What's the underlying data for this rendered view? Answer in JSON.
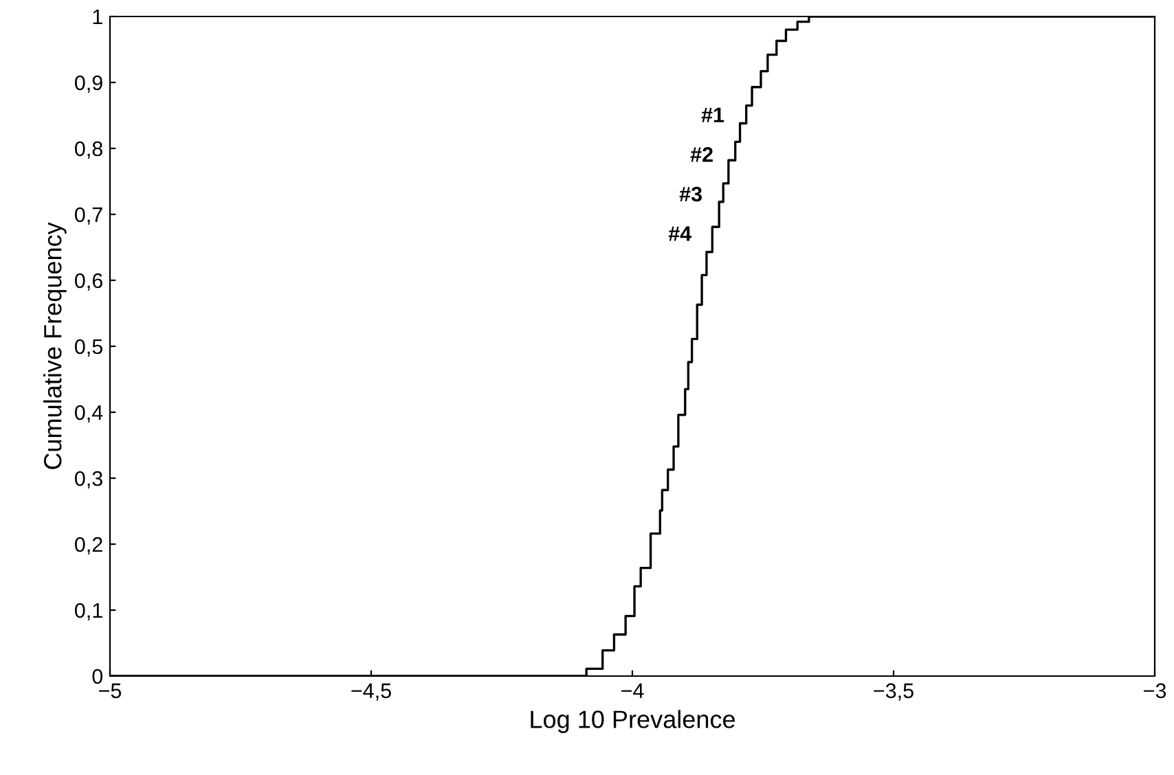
{
  "chart_data": {
    "type": "step",
    "xlabel": "Log 10 Prevalence",
    "ylabel": "Cumulative Frequency",
    "xlim": [
      -5,
      -3
    ],
    "ylim": [
      0,
      1
    ],
    "xticks": [
      {
        "value": -5,
        "label": "−5"
      },
      {
        "value": -4.5,
        "label": "−4,5"
      },
      {
        "value": -4,
        "label": "−4"
      },
      {
        "value": -3.5,
        "label": "−3,5"
      },
      {
        "value": -3,
        "label": "−3"
      }
    ],
    "yticks": [
      0,
      {
        "value": 0.1,
        "label": "0,1"
      },
      {
        "value": 0.2,
        "label": "0,2"
      },
      {
        "value": 0.3,
        "label": "0,3"
      },
      {
        "value": 0.4,
        "label": "0,4"
      },
      {
        "value": 0.5,
        "label": "0,5"
      },
      {
        "value": 0.6,
        "label": "0,6"
      },
      {
        "value": 0.7,
        "label": "0,7"
      },
      {
        "value": 0.8,
        "label": "0,8"
      },
      {
        "value": 0.9,
        "label": "0,9"
      },
      1
    ],
    "grid": false,
    "marker": "none",
    "line_style": "solid",
    "series": [
      {
        "color": "#000000",
        "x": [
          -5,
          -4.114,
          -4.088,
          -4.057,
          -4.035,
          -4.013,
          -3.996,
          -3.984,
          -3.965,
          -3.947,
          -3.943,
          -3.932,
          -3.921,
          -3.912,
          -3.899,
          -3.893,
          -3.886,
          -3.876,
          -3.867,
          -3.858,
          -3.847,
          -3.834,
          -3.826,
          -3.816,
          -3.803,
          -3.794,
          -3.782,
          -3.771,
          -3.754,
          -3.741,
          -3.724,
          -3.706,
          -3.684,
          -3.662,
          -3
        ],
        "values": [
          0,
          0,
          0.011,
          0.039,
          0.063,
          0.091,
          0.136,
          0.164,
          0.216,
          0.251,
          0.282,
          0.313,
          0.348,
          0.396,
          0.435,
          0.476,
          0.511,
          0.563,
          0.608,
          0.643,
          0.681,
          0.719,
          0.747,
          0.782,
          0.81,
          0.838,
          0.865,
          0.893,
          0.917,
          0.942,
          0.963,
          0.98,
          0.992,
          1,
          1
        ]
      }
    ],
    "annotations": [
      "#1",
      "#2",
      "#3",
      "#4"
    ]
  }
}
